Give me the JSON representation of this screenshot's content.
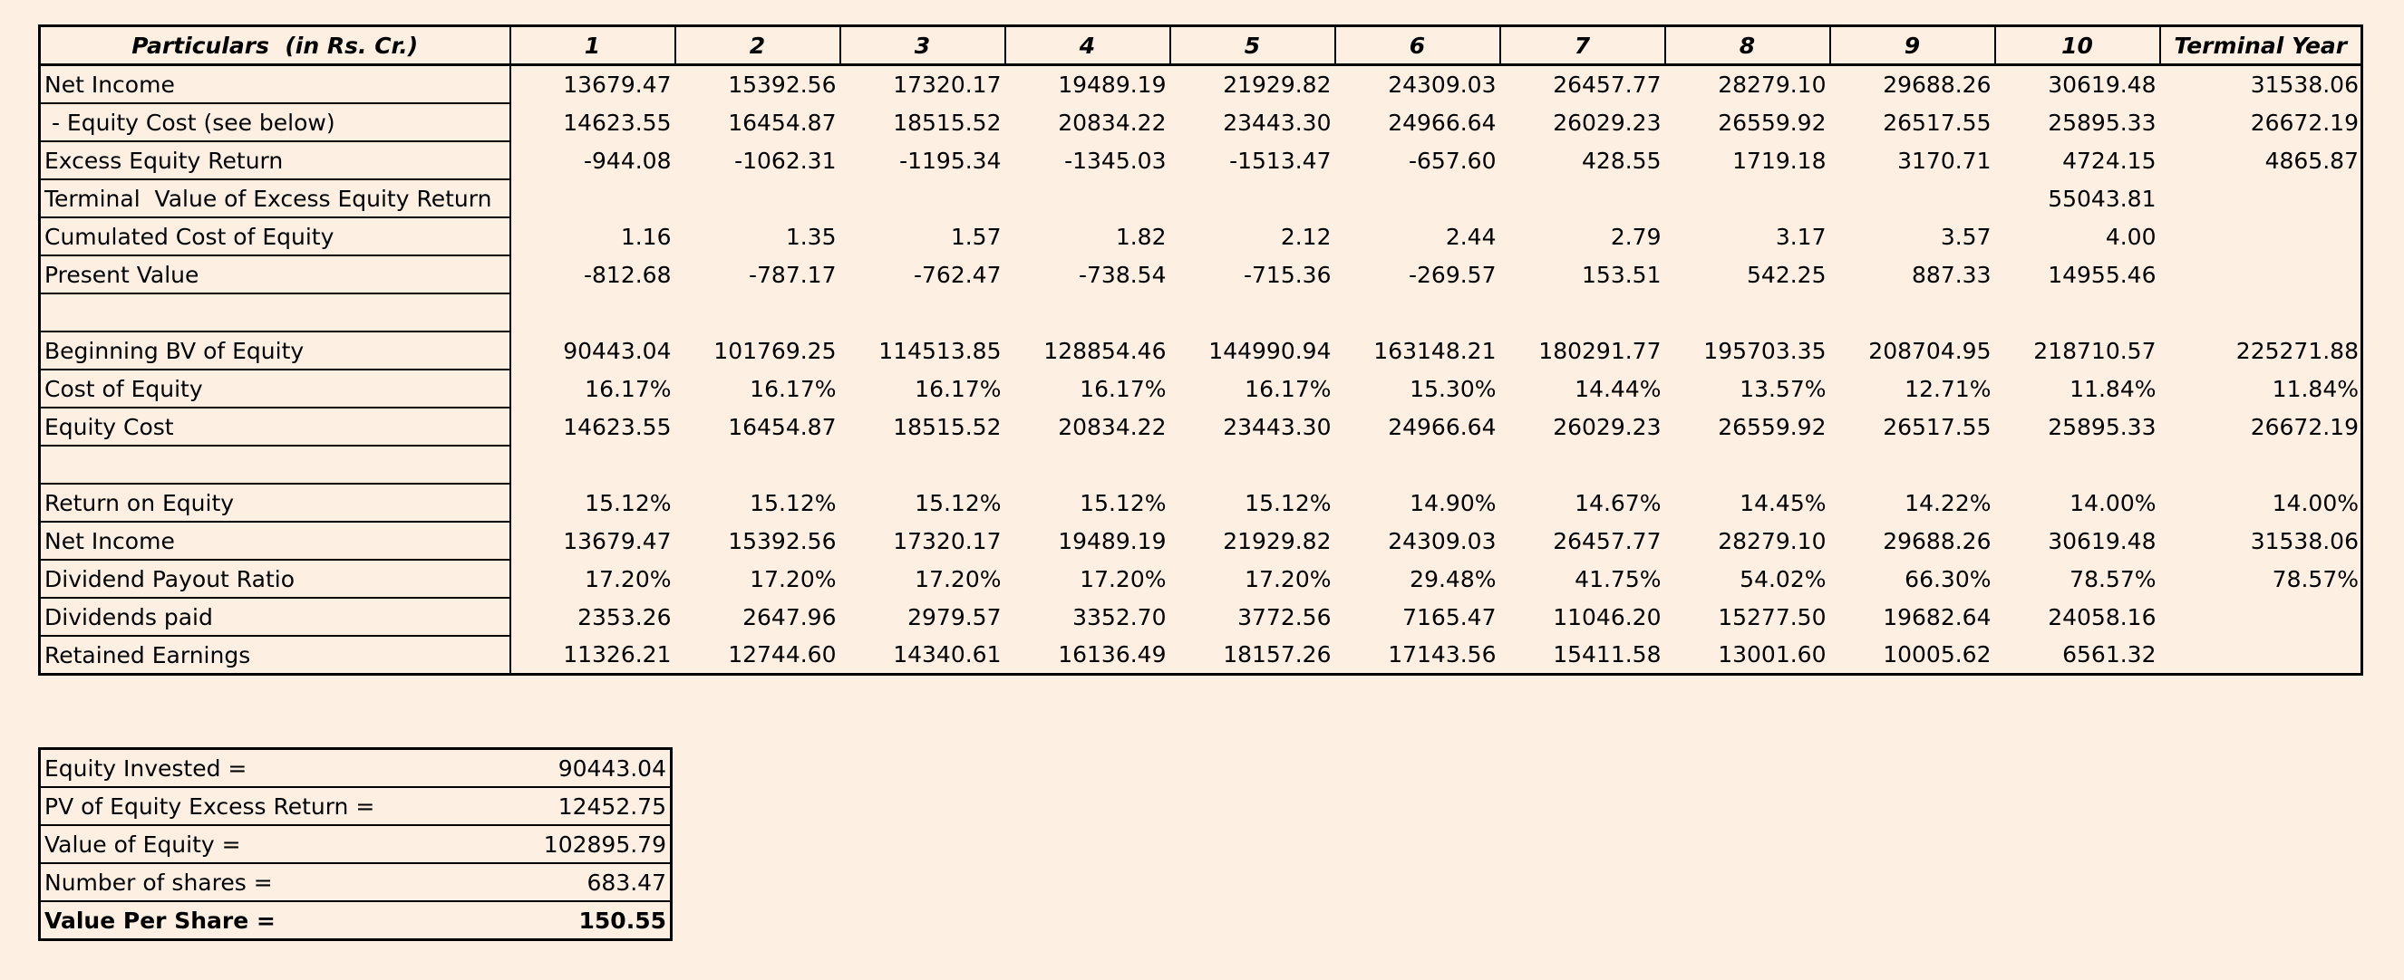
{
  "table": {
    "header": [
      "Particulars  (in Rs. Cr.)",
      "1",
      "2",
      "3",
      "4",
      "5",
      "6",
      "7",
      "8",
      "9",
      "10",
      "Terminal Year"
    ],
    "rows": [
      [
        "Net Income",
        "13679.47",
        "15392.56",
        "17320.17",
        "19489.19",
        "21929.82",
        "24309.03",
        "26457.77",
        "28279.10",
        "29688.26",
        "30619.48",
        "31538.06"
      ],
      [
        " - Equity Cost (see below)",
        "14623.55",
        "16454.87",
        "18515.52",
        "20834.22",
        "23443.30",
        "24966.64",
        "26029.23",
        "26559.92",
        "26517.55",
        "25895.33",
        "26672.19"
      ],
      [
        "Excess Equity Return",
        "-944.08",
        "-1062.31",
        "-1195.34",
        "-1345.03",
        "-1513.47",
        "-657.60",
        "428.55",
        "1719.18",
        "3170.71",
        "4724.15",
        "4865.87"
      ],
      [
        "Terminal  Value of Excess Equity Return",
        null,
        null,
        null,
        null,
        null,
        null,
        null,
        null,
        null,
        "55043.81",
        null
      ],
      [
        "Cumulated Cost of Equity",
        "1.16",
        "1.35",
        "1.57",
        "1.82",
        "2.12",
        "2.44",
        "2.79",
        "3.17",
        "3.57",
        "4.00",
        null
      ],
      [
        "Present Value",
        "-812.68",
        "-787.17",
        "-762.47",
        "-738.54",
        "-715.36",
        "-269.57",
        "153.51",
        "542.25",
        "887.33",
        "14955.46",
        null
      ],
      [
        null,
        null,
        null,
        null,
        null,
        null,
        null,
        null,
        null,
        null,
        null,
        null
      ],
      [
        "Beginning BV of Equity",
        "90443.04",
        "101769.25",
        "114513.85",
        "128854.46",
        "144990.94",
        "163148.21",
        "180291.77",
        "195703.35",
        "208704.95",
        "218710.57",
        "225271.88"
      ],
      [
        "Cost of Equity",
        "16.17%",
        "16.17%",
        "16.17%",
        "16.17%",
        "16.17%",
        "15.30%",
        "14.44%",
        "13.57%",
        "12.71%",
        "11.84%",
        "11.84%"
      ],
      [
        "Equity Cost",
        "14623.55",
        "16454.87",
        "18515.52",
        "20834.22",
        "23443.30",
        "24966.64",
        "26029.23",
        "26559.92",
        "26517.55",
        "25895.33",
        "26672.19"
      ],
      [
        null,
        null,
        null,
        null,
        null,
        null,
        null,
        null,
        null,
        null,
        null,
        null
      ],
      [
        "Return on Equity",
        "15.12%",
        "15.12%",
        "15.12%",
        "15.12%",
        "15.12%",
        "14.90%",
        "14.67%",
        "14.45%",
        "14.22%",
        "14.00%",
        "14.00%"
      ],
      [
        "Net Income",
        "13679.47",
        "15392.56",
        "17320.17",
        "19489.19",
        "21929.82",
        "24309.03",
        "26457.77",
        "28279.10",
        "29688.26",
        "30619.48",
        "31538.06"
      ],
      [
        "Dividend Payout Ratio",
        "17.20%",
        "17.20%",
        "17.20%",
        "17.20%",
        "17.20%",
        "29.48%",
        "41.75%",
        "54.02%",
        "66.30%",
        "78.57%",
        "78.57%"
      ],
      [
        "Dividends paid",
        "2353.26",
        "2647.96",
        "2979.57",
        "3352.70",
        "3772.56",
        "7165.47",
        "11046.20",
        "15277.50",
        "19682.64",
        "24058.16",
        null
      ],
      [
        "Retained Earnings",
        "11326.21",
        "12744.60",
        "14340.61",
        "16136.49",
        "18157.26",
        "17143.56",
        "15411.58",
        "13001.60",
        "10005.62",
        "6561.32",
        null
      ]
    ]
  },
  "summary": {
    "rows": [
      [
        "Equity Invested =",
        "90443.04"
      ],
      [
        "PV of Equity Excess Return =",
        "12452.75"
      ],
      [
        "Value of Equity =",
        "102895.79"
      ],
      [
        "Number of shares =",
        "683.47"
      ],
      [
        "Value Per Share =",
        "150.55"
      ]
    ]
  }
}
